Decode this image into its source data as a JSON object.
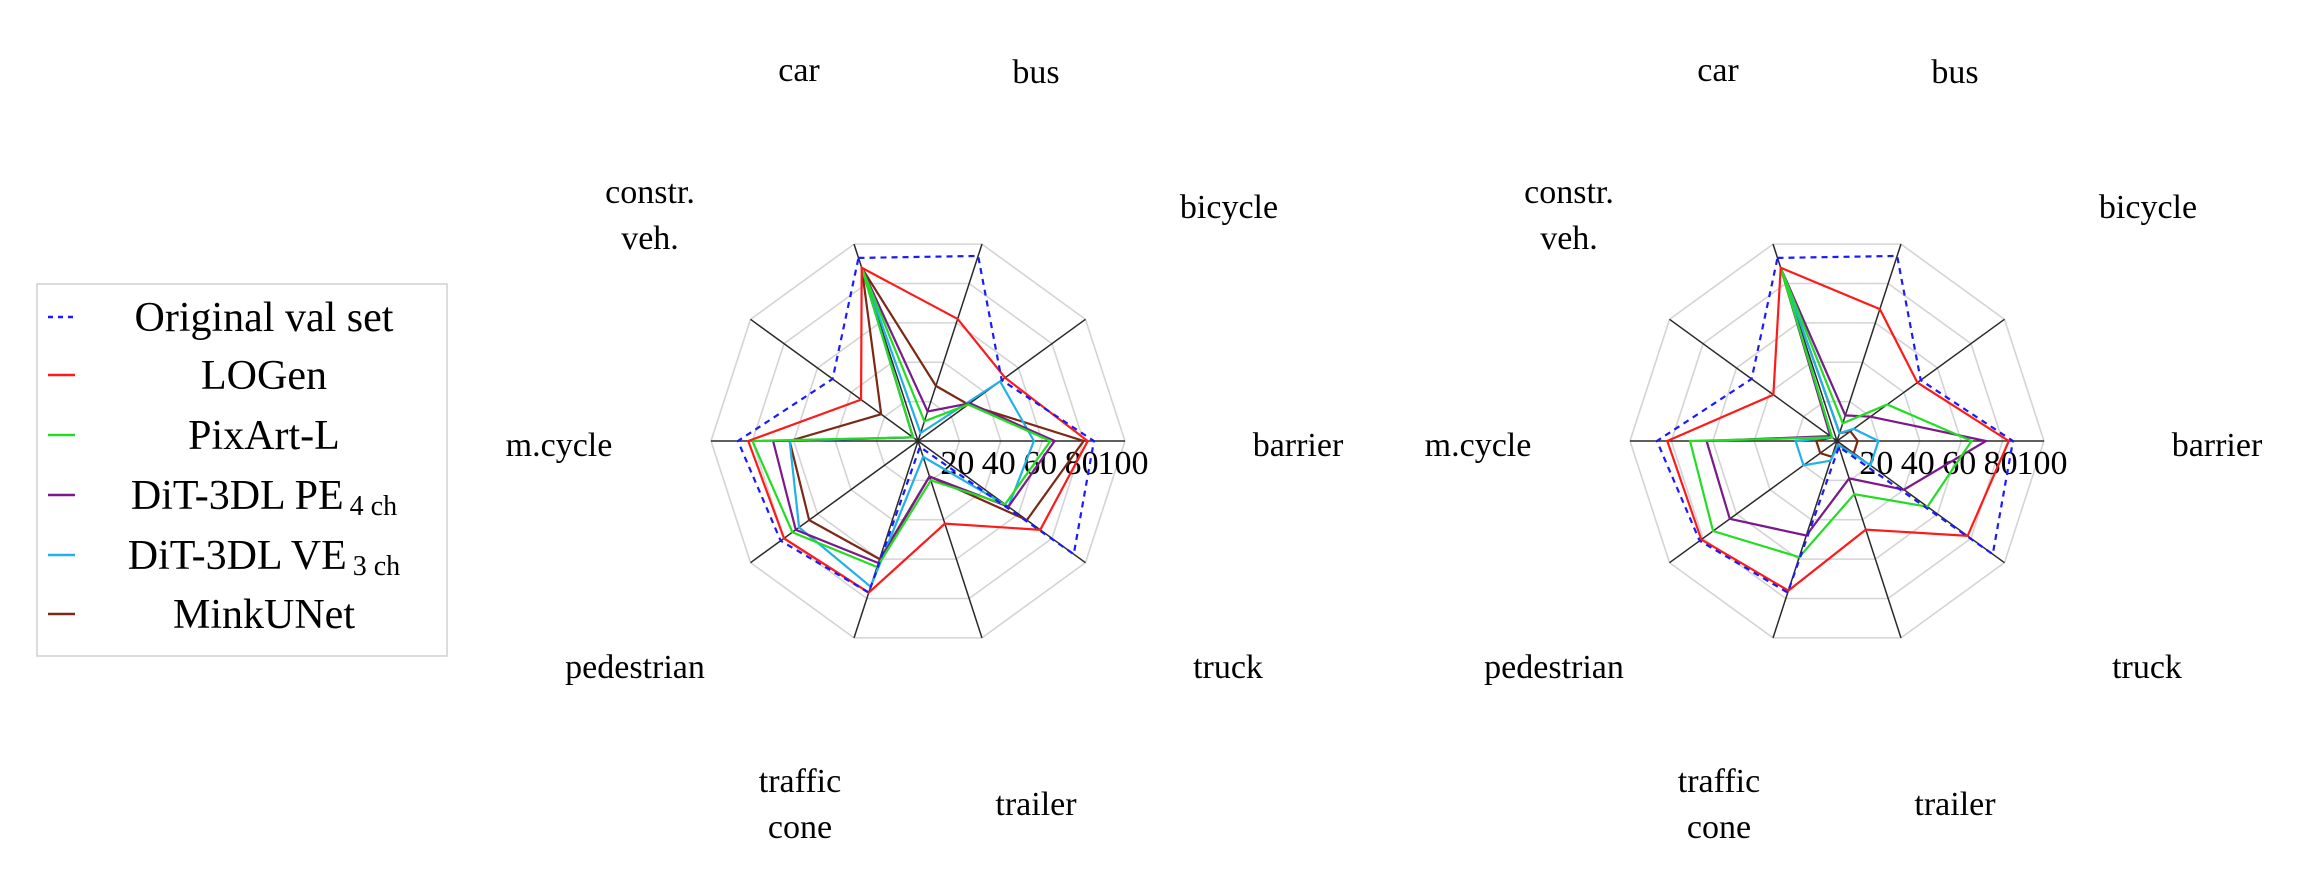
{
  "chart_data": {
    "type": "radar",
    "axes": [
      "car",
      "bus",
      "bicycle",
      "barrier",
      "truck",
      "trailer",
      "traffic cone",
      "pedestrian",
      "m.cycle",
      "constr. veh."
    ],
    "axis_label_lines": [
      [
        "car"
      ],
      [
        "bus"
      ],
      [
        "bicycle"
      ],
      [
        "barrier"
      ],
      [
        "truck"
      ],
      [
        "trailer"
      ],
      [
        "traffic",
        "cone"
      ],
      [
        "pedestrian"
      ],
      [
        "m.cycle"
      ],
      [
        "constr.",
        "veh."
      ]
    ],
    "radial_ticks": [
      "20",
      "40",
      "60",
      "80",
      "100"
    ],
    "rlim": [
      0,
      100
    ],
    "grid": true,
    "legend": {
      "placement": "left",
      "entries": [
        {
          "key": "orig",
          "main": "Original val set",
          "sub": "",
          "color": "#1a1aff",
          "dashed": true
        },
        {
          "key": "logen",
          "main": "LOGen",
          "sub": "",
          "color": "#ff1a1a",
          "dashed": false
        },
        {
          "key": "pixart",
          "main": "PixArt-L",
          "sub": "",
          "color": "#22dd22",
          "dashed": false
        },
        {
          "key": "dit_pe",
          "main": "DiT-3DL PE",
          "sub": "4 ch",
          "color": "#7a1a8a",
          "dashed": false
        },
        {
          "key": "dit_ve",
          "main": "DiT-3DL VE",
          "sub": "3 ch",
          "color": "#22b0e8",
          "dashed": false
        },
        {
          "key": "mink",
          "main": "MinkUNet",
          "sub": "",
          "color": "#7a2a14",
          "dashed": false
        }
      ]
    },
    "charts": [
      {
        "series": [
          {
            "key": "orig",
            "values": [
              93,
              94,
              50,
              85,
              93,
              3,
              77,
              82,
              87,
              51
            ]
          },
          {
            "key": "logen",
            "values": [
              88,
              62,
              52,
              82,
              73,
              42,
              77,
              80,
              82,
              34
            ]
          },
          {
            "key": "pixart",
            "values": [
              88,
              10,
              30,
              64,
              52,
              20,
              64,
              75,
              80,
              3
            ]
          },
          {
            "key": "dit_pe",
            "values": [
              88,
              15,
              31,
              66,
              54,
              18,
              62,
              73,
              70,
              3
            ]
          },
          {
            "key": "dit_ve",
            "values": [
              88,
              4,
              49,
              56,
              54,
              8,
              74,
              71,
              62,
              3
            ]
          },
          {
            "key": "mink",
            "values": [
              88,
              28,
              30,
              80,
              65,
              18,
              60,
              65,
              62,
              22
            ]
          }
        ]
      },
      {
        "series": [
          {
            "key": "orig",
            "values": [
              93,
              94,
              50,
              85,
              93,
              3,
              77,
              82,
              87,
              51
            ]
          },
          {
            "key": "logen",
            "values": [
              88,
              67,
              48,
              83,
              78,
              45,
              76,
              81,
              82,
              38
            ]
          },
          {
            "key": "pixart",
            "values": [
              88,
              9,
              30,
              65,
              54,
              27,
              59,
              74,
              71,
              3
            ]
          },
          {
            "key": "dit_pe",
            "values": [
              88,
              13,
              20,
              72,
              40,
              19,
              48,
              64,
              63,
              4
            ]
          },
          {
            "key": "dit_ve",
            "values": [
              88,
              4,
              10,
              20,
              20,
              2,
              10,
              20,
              20,
              3
            ]
          },
          {
            "key": "mink",
            "values": [
              88,
              4,
              8,
              10,
              10,
              2,
              8,
              10,
              10,
              3
            ]
          }
        ]
      }
    ]
  }
}
